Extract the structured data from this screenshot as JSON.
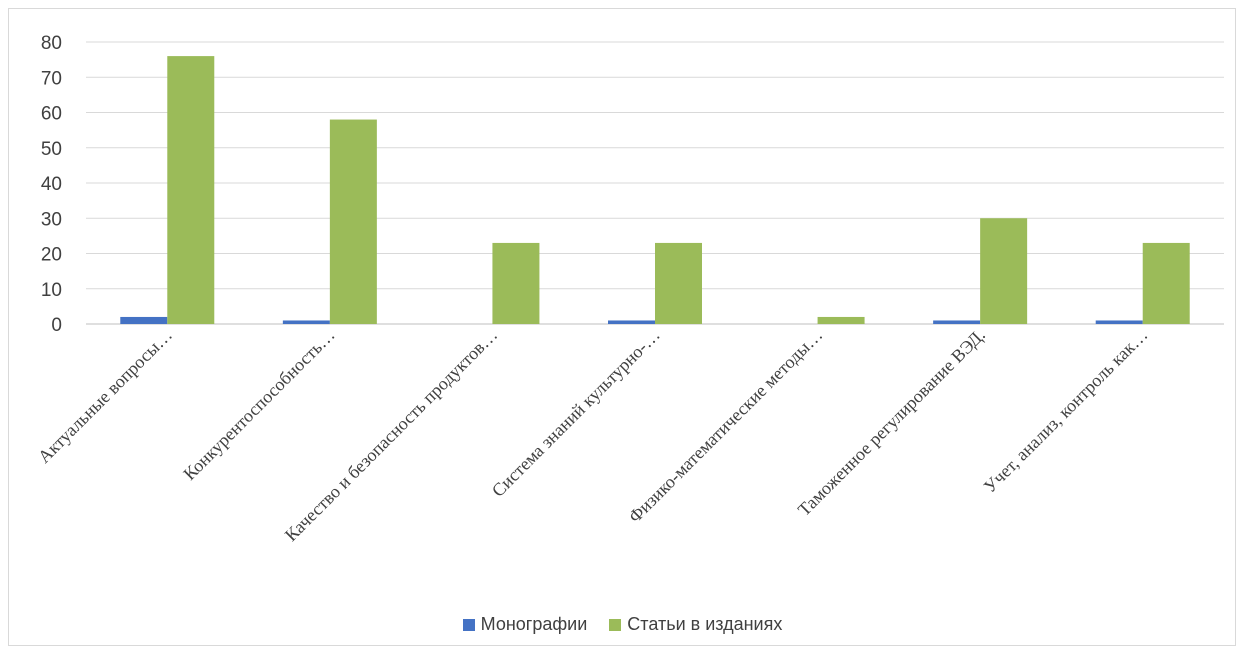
{
  "chart_data": {
    "type": "bar",
    "categories": [
      "Актуальные вопросы…",
      "Конкурентоспособность…",
      "Качество и безопасность продуктов…",
      "Система знаний культурно-…",
      "Физико-математические методы…",
      "Таможенное регулирование ВЭД.",
      "Учет, анализ, контроль как…"
    ],
    "series": [
      {
        "name": "Монографии",
        "color": "#4472c4",
        "values": [
          2,
          1,
          0,
          1,
          0,
          1,
          1
        ]
      },
      {
        "name": "Статьи в изданиях",
        "color": "#9bbb59",
        "values": [
          76,
          58,
          23,
          23,
          2,
          30,
          23
        ]
      }
    ],
    "ylim": [
      0,
      80
    ],
    "yticks": [
      0,
      10,
      20,
      30,
      40,
      50,
      60,
      70,
      80
    ],
    "grid": true,
    "legend_position": "bottom"
  }
}
